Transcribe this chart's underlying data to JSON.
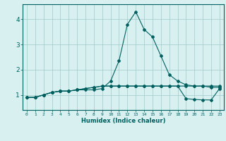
{
  "xlabel": "Humidex (Indice chaleur)",
  "ylabel": "",
  "bg_color": "#d8f0f0",
  "grid_color": "#a0c8c8",
  "line_color": "#006060",
  "xlim": [
    -0.5,
    23.5
  ],
  "ylim": [
    0.4,
    4.6
  ],
  "xticks": [
    0,
    1,
    2,
    3,
    4,
    5,
    6,
    7,
    8,
    9,
    10,
    11,
    12,
    13,
    14,
    15,
    16,
    17,
    18,
    19,
    20,
    21,
    22,
    23
  ],
  "yticks": [
    1,
    2,
    3,
    4
  ],
  "series": [
    [
      0.9,
      0.9,
      1.0,
      1.1,
      1.15,
      1.15,
      1.2,
      1.2,
      1.2,
      1.25,
      1.55,
      2.35,
      3.8,
      4.3,
      3.6,
      3.3,
      2.55,
      1.8,
      1.55,
      1.4,
      1.35,
      1.35,
      1.3,
      1.3
    ],
    [
      0.9,
      0.9,
      1.0,
      1.1,
      1.15,
      1.15,
      1.2,
      1.25,
      1.3,
      1.35,
      1.35,
      1.35,
      1.35,
      1.35,
      1.35,
      1.35,
      1.35,
      1.35,
      1.35,
      1.35,
      1.35,
      1.35,
      1.35,
      1.35
    ],
    [
      0.9,
      0.9,
      1.0,
      1.1,
      1.15,
      1.15,
      1.2,
      1.25,
      1.3,
      1.35,
      1.35,
      1.35,
      1.35,
      1.35,
      1.35,
      1.35,
      1.35,
      1.35,
      1.35,
      0.85,
      0.82,
      0.8,
      0.8,
      1.25
    ]
  ]
}
